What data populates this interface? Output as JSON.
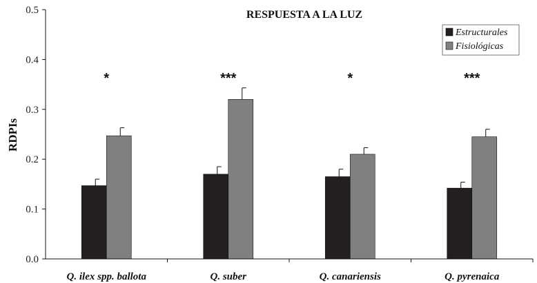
{
  "chart_data": {
    "type": "bar",
    "title": "RESPUESTA A LA LUZ",
    "xlabel": "",
    "ylabel": "RDPIs",
    "ylim": [
      0,
      0.5
    ],
    "yticks": [
      "0.0",
      "0.1",
      "0.2",
      "0.3",
      "0.4",
      "0.5"
    ],
    "categories": [
      "Q. ilex spp. ballota",
      "Q. suber",
      "Q. canariensis",
      "Q. pyrenaica"
    ],
    "series": [
      {
        "name": "Estructurales",
        "color": "#231f20",
        "values": [
          0.147,
          0.17,
          0.165,
          0.142
        ],
        "errors": [
          0.013,
          0.015,
          0.015,
          0.012
        ]
      },
      {
        "name": "Fisiológicas",
        "color": "#808080",
        "values": [
          0.247,
          0.32,
          0.21,
          0.245
        ],
        "errors": [
          0.016,
          0.023,
          0.013,
          0.015
        ]
      }
    ],
    "significance": [
      "*",
      "***",
      "*",
      "***"
    ],
    "legend_position": "top-right",
    "grid": false
  }
}
